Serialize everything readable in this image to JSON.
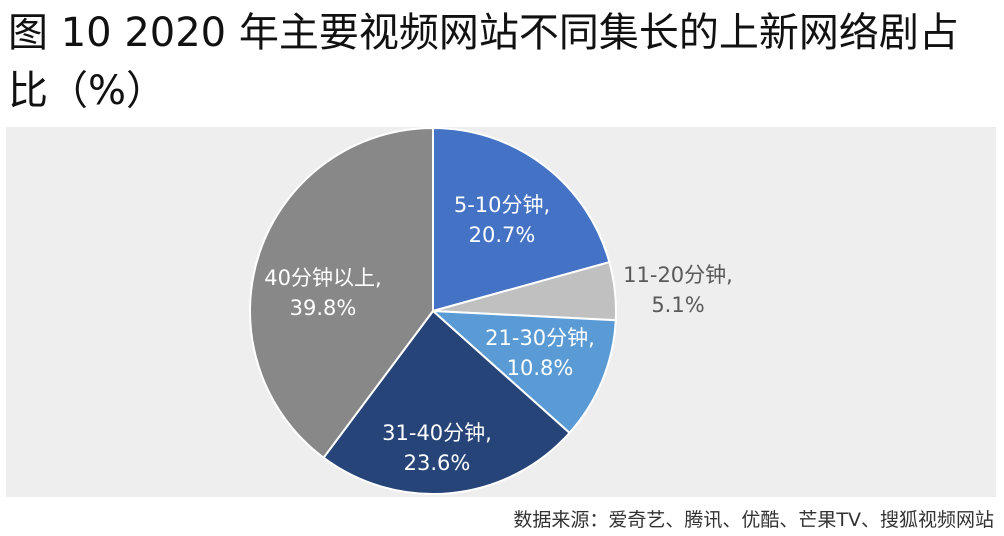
{
  "figure": {
    "title_line1": "图 10 2020 年主要视频网站不同集长的上新网络剧占",
    "title_line2": "比（%）",
    "source": "数据来源：爱奇艺、腾讯、优酷、芒果TV、搜狐视频网站"
  },
  "chart_data": {
    "type": "pie",
    "start": "12 o'clock",
    "direction": "clockwise",
    "slices": [
      {
        "label": "5-10分钟",
        "value": 20.7,
        "value_text": "20.7%",
        "color": "#4472c4",
        "label_color": "#ffffff"
      },
      {
        "label": "11-20分钟",
        "value": 5.1,
        "value_text": "5.1%",
        "color": "#c0c0c0",
        "label_color": "#595959"
      },
      {
        "label": "21-30分钟",
        "value": 10.8,
        "value_text": "10.8%",
        "color": "#5b9bd5",
        "label_color": "#ffffff"
      },
      {
        "label": "31-40分钟",
        "value": 23.6,
        "value_text": "23.6%",
        "color": "#264478",
        "label_color": "#ffffff"
      },
      {
        "label": "40分钟以上",
        "value": 39.8,
        "value_text": "39.8%",
        "color": "#888888",
        "label_color": "#ffffff"
      }
    ]
  }
}
